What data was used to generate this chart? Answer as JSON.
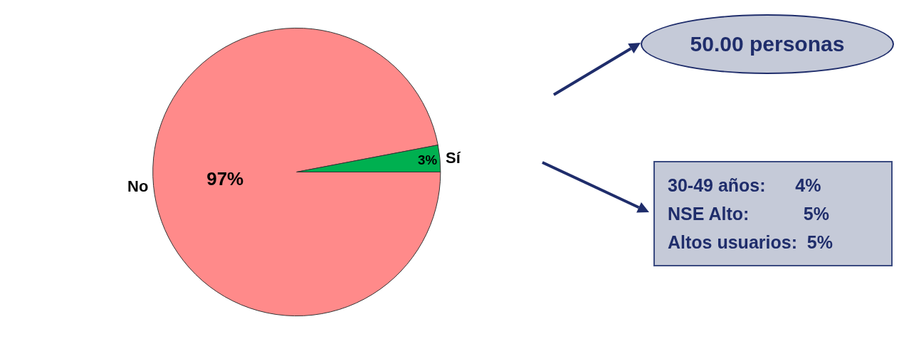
{
  "chart_data": {
    "type": "pie",
    "categories": [
      "No",
      "Sí"
    ],
    "values": [
      97,
      3
    ],
    "colors": [
      "#ff8a8a",
      "#00b050"
    ],
    "value_labels": [
      "97%",
      "3%"
    ],
    "legend": false,
    "annotations": [
      "50.00 personas",
      "30-49 años:      4%",
      "NSE Alto:           5%",
      "Altos usuarios:  5%"
    ]
  }
}
